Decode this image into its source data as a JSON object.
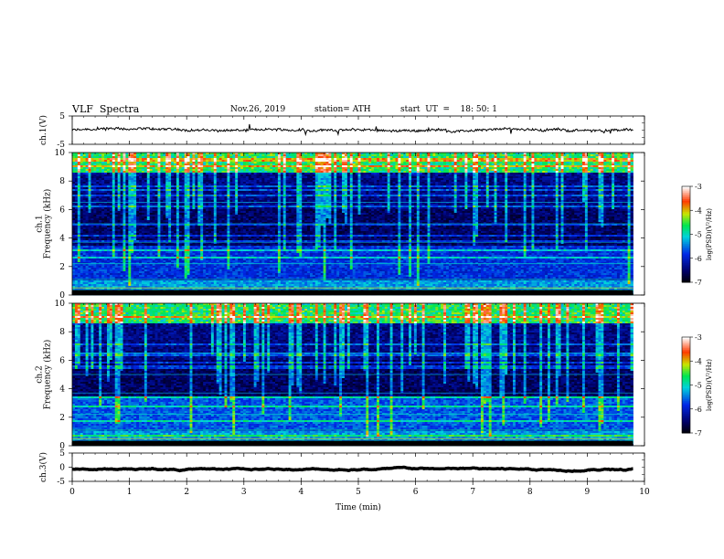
{
  "header": {
    "title": "VLF  Spectra",
    "date": "Nov.26, 2019",
    "station": "station= ATH",
    "start": "start  UT  =    18: 50: 1"
  },
  "chart_data": [
    {
      "type": "line",
      "ylabel": "ch.1(V)",
      "ylim": [
        -5,
        5
      ],
      "yticks": [
        "5",
        "-5"
      ],
      "xlim": [
        0,
        10
      ],
      "series": [
        {
          "color": "#000000",
          "baseline": 0.0,
          "noise_amp": 0.8,
          "x_end": 9.8
        }
      ]
    },
    {
      "type": "heatmap",
      "ylabel": "ch.1\nFrequency  (kHz)",
      "ylim": [
        0,
        10
      ],
      "yticks": [
        "0",
        "2",
        "4",
        "6",
        "8",
        "10"
      ],
      "xlim": [
        0,
        10
      ],
      "data_x_end": 9.8,
      "colorbar": {
        "label": "log(PSD)(V²/Hz)",
        "range": [
          -7,
          -3
        ],
        "ticks": [
          "-3",
          "-4",
          "-5",
          "-6",
          "-7"
        ]
      }
    },
    {
      "type": "heatmap",
      "ylabel": "ch.2\nFrequency  (kHz)",
      "ylim": [
        0,
        10
      ],
      "yticks": [
        "0",
        "2",
        "4",
        "6",
        "8",
        "10"
      ],
      "xlim": [
        0,
        10
      ],
      "data_x_end": 9.8,
      "colorbar": {
        "label": "log(PSD)(V²/Hz)",
        "range": [
          -7,
          -3
        ],
        "ticks": [
          "-3",
          "-4",
          "-5",
          "-6",
          "-7"
        ]
      }
    },
    {
      "type": "line",
      "ylabel": "ch.3(V)",
      "ylim": [
        -5,
        5
      ],
      "yticks": [
        "5",
        "0",
        "-5"
      ],
      "xlim": [
        0,
        10
      ],
      "xlabel": "Time  (min)",
      "xticks": [
        "0",
        "1",
        "2",
        "3",
        "4",
        "5",
        "6",
        "7",
        "8",
        "9",
        "10"
      ],
      "series": [
        {
          "color": "#000000",
          "baseline": -0.7,
          "noise_amp": 0.05,
          "x_end": 9.8
        }
      ]
    }
  ]
}
